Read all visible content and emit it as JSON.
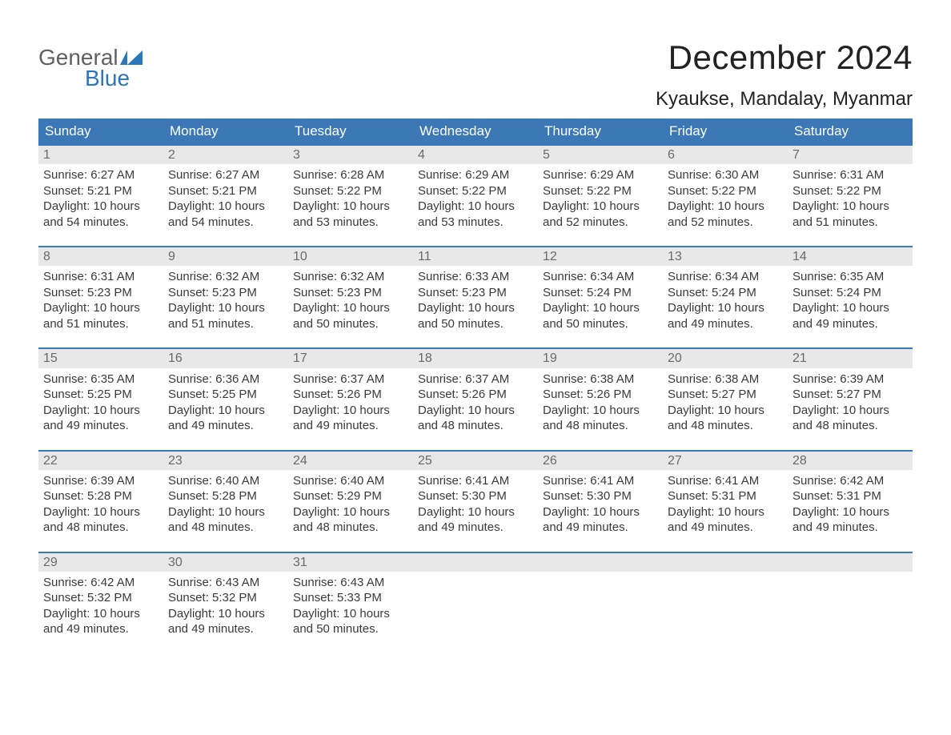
{
  "brand": {
    "general": "General",
    "blue": "Blue",
    "shape_color": "#2a77bb",
    "text_gray": "#606060"
  },
  "title": "December 2024",
  "location": "Kyaukse, Mandalay, Myanmar",
  "colors": {
    "header_bg": "#3b78b5",
    "header_text": "#ffffff",
    "week_border": "#3b78b5",
    "daynum_bg": "#e8e8e8",
    "daynum_text": "#6a6a6a",
    "body_text": "#3a3a3a",
    "background": "#ffffff"
  },
  "typography": {
    "title_fontsize": 42,
    "location_fontsize": 24,
    "dayhead_fontsize": 17,
    "daynum_fontsize": 16,
    "body_fontsize": 15
  },
  "day_names": [
    "Sunday",
    "Monday",
    "Tuesday",
    "Wednesday",
    "Thursday",
    "Friday",
    "Saturday"
  ],
  "weeks": [
    [
      {
        "n": "1",
        "sunrise": "Sunrise: 6:27 AM",
        "sunset": "Sunset: 5:21 PM",
        "daylight1": "Daylight: 10 hours",
        "daylight2": "and 54 minutes."
      },
      {
        "n": "2",
        "sunrise": "Sunrise: 6:27 AM",
        "sunset": "Sunset: 5:21 PM",
        "daylight1": "Daylight: 10 hours",
        "daylight2": "and 54 minutes."
      },
      {
        "n": "3",
        "sunrise": "Sunrise: 6:28 AM",
        "sunset": "Sunset: 5:22 PM",
        "daylight1": "Daylight: 10 hours",
        "daylight2": "and 53 minutes."
      },
      {
        "n": "4",
        "sunrise": "Sunrise: 6:29 AM",
        "sunset": "Sunset: 5:22 PM",
        "daylight1": "Daylight: 10 hours",
        "daylight2": "and 53 minutes."
      },
      {
        "n": "5",
        "sunrise": "Sunrise: 6:29 AM",
        "sunset": "Sunset: 5:22 PM",
        "daylight1": "Daylight: 10 hours",
        "daylight2": "and 52 minutes."
      },
      {
        "n": "6",
        "sunrise": "Sunrise: 6:30 AM",
        "sunset": "Sunset: 5:22 PM",
        "daylight1": "Daylight: 10 hours",
        "daylight2": "and 52 minutes."
      },
      {
        "n": "7",
        "sunrise": "Sunrise: 6:31 AM",
        "sunset": "Sunset: 5:22 PM",
        "daylight1": "Daylight: 10 hours",
        "daylight2": "and 51 minutes."
      }
    ],
    [
      {
        "n": "8",
        "sunrise": "Sunrise: 6:31 AM",
        "sunset": "Sunset: 5:23 PM",
        "daylight1": "Daylight: 10 hours",
        "daylight2": "and 51 minutes."
      },
      {
        "n": "9",
        "sunrise": "Sunrise: 6:32 AM",
        "sunset": "Sunset: 5:23 PM",
        "daylight1": "Daylight: 10 hours",
        "daylight2": "and 51 minutes."
      },
      {
        "n": "10",
        "sunrise": "Sunrise: 6:32 AM",
        "sunset": "Sunset: 5:23 PM",
        "daylight1": "Daylight: 10 hours",
        "daylight2": "and 50 minutes."
      },
      {
        "n": "11",
        "sunrise": "Sunrise: 6:33 AM",
        "sunset": "Sunset: 5:23 PM",
        "daylight1": "Daylight: 10 hours",
        "daylight2": "and 50 minutes."
      },
      {
        "n": "12",
        "sunrise": "Sunrise: 6:34 AM",
        "sunset": "Sunset: 5:24 PM",
        "daylight1": "Daylight: 10 hours",
        "daylight2": "and 50 minutes."
      },
      {
        "n": "13",
        "sunrise": "Sunrise: 6:34 AM",
        "sunset": "Sunset: 5:24 PM",
        "daylight1": "Daylight: 10 hours",
        "daylight2": "and 49 minutes."
      },
      {
        "n": "14",
        "sunrise": "Sunrise: 6:35 AM",
        "sunset": "Sunset: 5:24 PM",
        "daylight1": "Daylight: 10 hours",
        "daylight2": "and 49 minutes."
      }
    ],
    [
      {
        "n": "15",
        "sunrise": "Sunrise: 6:35 AM",
        "sunset": "Sunset: 5:25 PM",
        "daylight1": "Daylight: 10 hours",
        "daylight2": "and 49 minutes."
      },
      {
        "n": "16",
        "sunrise": "Sunrise: 6:36 AM",
        "sunset": "Sunset: 5:25 PM",
        "daylight1": "Daylight: 10 hours",
        "daylight2": "and 49 minutes."
      },
      {
        "n": "17",
        "sunrise": "Sunrise: 6:37 AM",
        "sunset": "Sunset: 5:26 PM",
        "daylight1": "Daylight: 10 hours",
        "daylight2": "and 49 minutes."
      },
      {
        "n": "18",
        "sunrise": "Sunrise: 6:37 AM",
        "sunset": "Sunset: 5:26 PM",
        "daylight1": "Daylight: 10 hours",
        "daylight2": "and 48 minutes."
      },
      {
        "n": "19",
        "sunrise": "Sunrise: 6:38 AM",
        "sunset": "Sunset: 5:26 PM",
        "daylight1": "Daylight: 10 hours",
        "daylight2": "and 48 minutes."
      },
      {
        "n": "20",
        "sunrise": "Sunrise: 6:38 AM",
        "sunset": "Sunset: 5:27 PM",
        "daylight1": "Daylight: 10 hours",
        "daylight2": "and 48 minutes."
      },
      {
        "n": "21",
        "sunrise": "Sunrise: 6:39 AM",
        "sunset": "Sunset: 5:27 PM",
        "daylight1": "Daylight: 10 hours",
        "daylight2": "and 48 minutes."
      }
    ],
    [
      {
        "n": "22",
        "sunrise": "Sunrise: 6:39 AM",
        "sunset": "Sunset: 5:28 PM",
        "daylight1": "Daylight: 10 hours",
        "daylight2": "and 48 minutes."
      },
      {
        "n": "23",
        "sunrise": "Sunrise: 6:40 AM",
        "sunset": "Sunset: 5:28 PM",
        "daylight1": "Daylight: 10 hours",
        "daylight2": "and 48 minutes."
      },
      {
        "n": "24",
        "sunrise": "Sunrise: 6:40 AM",
        "sunset": "Sunset: 5:29 PM",
        "daylight1": "Daylight: 10 hours",
        "daylight2": "and 48 minutes."
      },
      {
        "n": "25",
        "sunrise": "Sunrise: 6:41 AM",
        "sunset": "Sunset: 5:30 PM",
        "daylight1": "Daylight: 10 hours",
        "daylight2": "and 49 minutes."
      },
      {
        "n": "26",
        "sunrise": "Sunrise: 6:41 AM",
        "sunset": "Sunset: 5:30 PM",
        "daylight1": "Daylight: 10 hours",
        "daylight2": "and 49 minutes."
      },
      {
        "n": "27",
        "sunrise": "Sunrise: 6:41 AM",
        "sunset": "Sunset: 5:31 PM",
        "daylight1": "Daylight: 10 hours",
        "daylight2": "and 49 minutes."
      },
      {
        "n": "28",
        "sunrise": "Sunrise: 6:42 AM",
        "sunset": "Sunset: 5:31 PM",
        "daylight1": "Daylight: 10 hours",
        "daylight2": "and 49 minutes."
      }
    ],
    [
      {
        "n": "29",
        "sunrise": "Sunrise: 6:42 AM",
        "sunset": "Sunset: 5:32 PM",
        "daylight1": "Daylight: 10 hours",
        "daylight2": "and 49 minutes."
      },
      {
        "n": "30",
        "sunrise": "Sunrise: 6:43 AM",
        "sunset": "Sunset: 5:32 PM",
        "daylight1": "Daylight: 10 hours",
        "daylight2": "and 49 minutes."
      },
      {
        "n": "31",
        "sunrise": "Sunrise: 6:43 AM",
        "sunset": "Sunset: 5:33 PM",
        "daylight1": "Daylight: 10 hours",
        "daylight2": "and 50 minutes."
      },
      {
        "empty": true
      },
      {
        "empty": true
      },
      {
        "empty": true
      },
      {
        "empty": true
      }
    ]
  ]
}
